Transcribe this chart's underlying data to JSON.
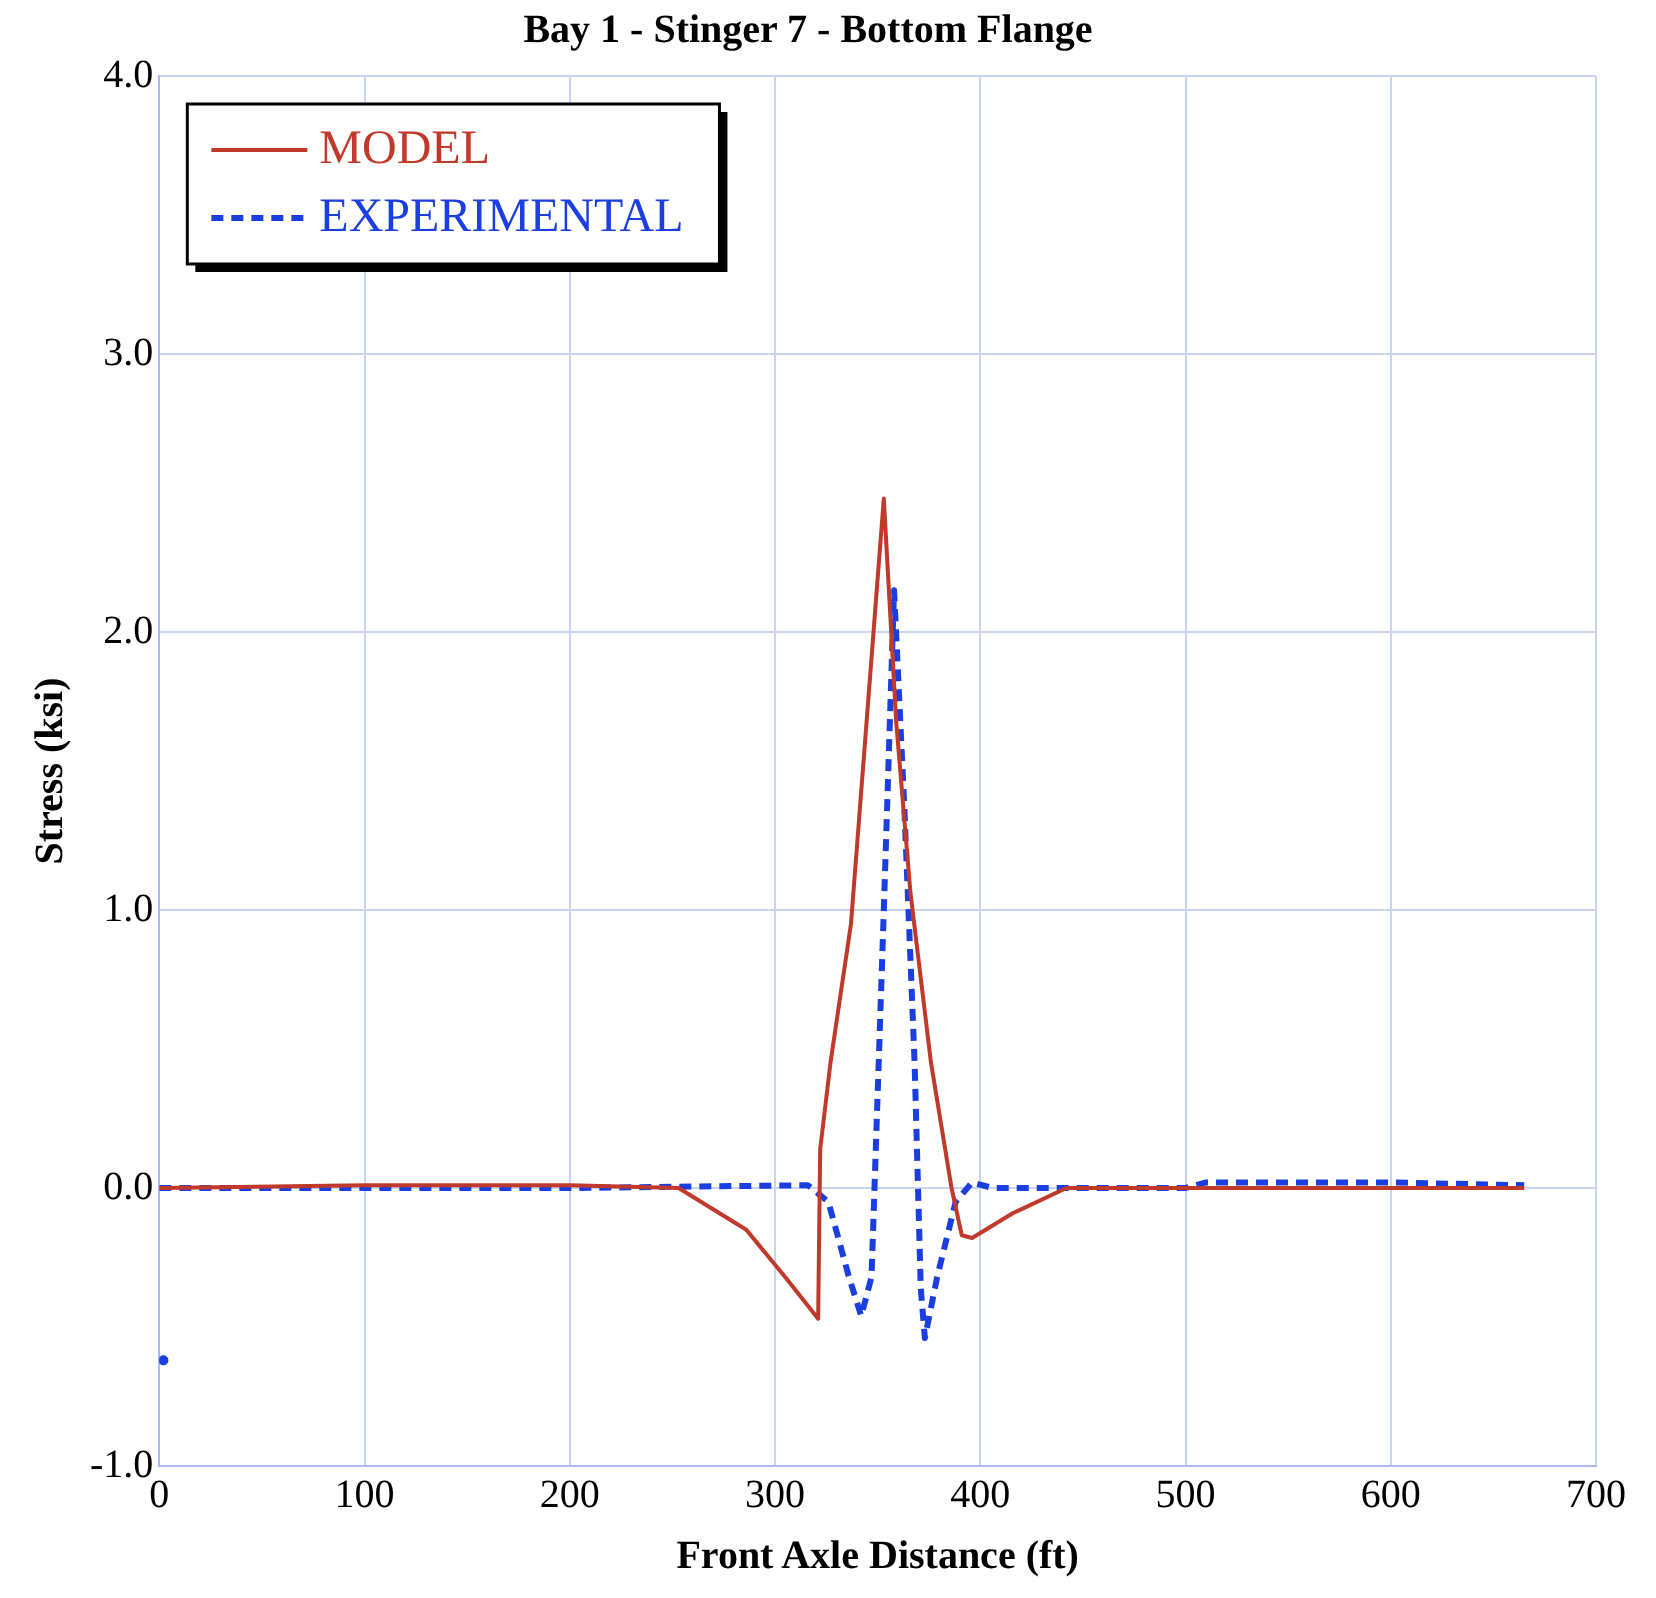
{
  "chart_data": {
    "type": "line",
    "title": "Bay 1 - Stinger 7 - Bottom Flange",
    "xlabel": "Front Axle Distance (ft)",
    "ylabel": "Stress (ksi)",
    "xlim": [
      0,
      700
    ],
    "xticks": [
      0,
      100,
      200,
      300,
      400,
      500,
      600,
      700
    ],
    "ylim": [
      -1,
      4
    ],
    "yticks": [
      {
        "value": -1,
        "label": "-1.0"
      },
      {
        "value": 0,
        "label": "0.0"
      },
      {
        "value": 1,
        "label": "1.0"
      },
      {
        "value": 2,
        "label": "2.0"
      },
      {
        "value": 3,
        "label": "3.0"
      },
      {
        "value": 4,
        "label": "4.0"
      }
    ],
    "grid": true,
    "legend": "top left",
    "marker": "none",
    "series": [
      {
        "name": "MODEL",
        "color": "#c0392b",
        "line_style": "solid",
        "x": [
          0,
          100,
          200,
          253,
          286,
          306,
          321,
          322,
          327,
          337,
          353,
          359,
          366,
          376,
          386,
          391,
          396,
          416,
          442,
          500,
          600,
          665
        ],
        "values": [
          0,
          0.01,
          0.01,
          0,
          -0.15,
          -0.33,
          -0.47,
          0.14,
          0.45,
          0.95,
          2.48,
          1.68,
          1.06,
          0.45,
          0,
          -0.17,
          -0.18,
          -0.09,
          0,
          0,
          0,
          0
        ]
      },
      {
        "name": "EXPERIMENTAL",
        "color": "#1a3ee0",
        "line_style": "dashed",
        "x": [
          0,
          100,
          200,
          316,
          326,
          336,
          342,
          347,
          353,
          358,
          363,
          368,
          371,
          373,
          379,
          388,
          396,
          406,
          500,
          510,
          600,
          665
        ],
        "values": [
          0,
          0,
          0,
          0.01,
          -0.05,
          -0.32,
          -0.46,
          -0.32,
          1.0,
          2.15,
          1.37,
          0.45,
          -0.36,
          -0.54,
          -0.32,
          -0.05,
          0.02,
          0,
          0,
          0.02,
          0.02,
          0.01
        ]
      },
      {
        "type": "scatter",
        "color": "#1a3ee0",
        "marker": "circle",
        "x": [
          2
        ],
        "values": [
          -0.62
        ]
      }
    ]
  }
}
